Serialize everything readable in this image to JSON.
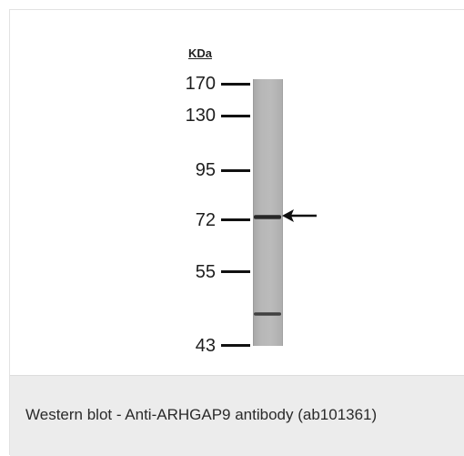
{
  "figure": {
    "unit_label": "KDa",
    "markers": [
      {
        "label": "170"
      },
      {
        "label": "130"
      },
      {
        "label": "95"
      },
      {
        "label": "72"
      },
      {
        "label": "55"
      },
      {
        "label": "43"
      }
    ],
    "bands": [
      "main-band",
      "minor-band"
    ],
    "arrow_icon": "left-arrow-icon",
    "colors": {
      "lane": "#b5b5b5",
      "band": "#1d1d1d",
      "caption_background": "#ececec"
    }
  },
  "caption": {
    "text": "Western blot - Anti-ARHGAP9 antibody (ab101361)"
  }
}
